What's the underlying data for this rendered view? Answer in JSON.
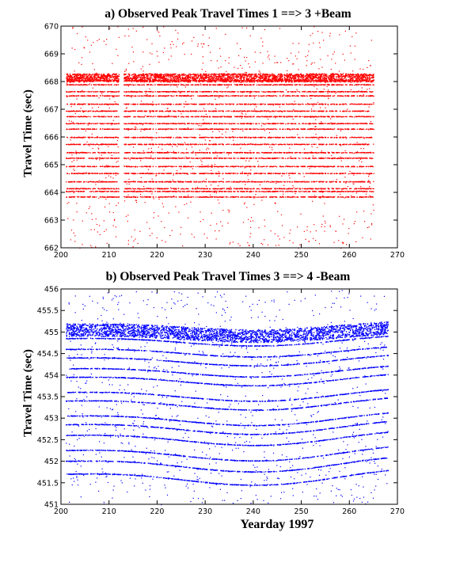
{
  "chart_data": [
    {
      "type": "scatter",
      "title": "a)  Observed Peak Travel Times 1 ==> 3 +Beam",
      "xlabel": "",
      "ylabel": "Travel Time (sec)",
      "xlim": [
        200,
        270
      ],
      "ylim": [
        662,
        670
      ],
      "xticks": [
        "200",
        "210",
        "220",
        "230",
        "240",
        "250",
        "260",
        "270"
      ],
      "yticks": [
        "662",
        "663",
        "664",
        "665",
        "666",
        "667",
        "668",
        "669",
        "670"
      ],
      "grid": false,
      "color": "#ff0000",
      "x_range_of_data": [
        201,
        265
      ],
      "gap": [
        212,
        213
      ],
      "arrival_bands": [
        668.05,
        667.9,
        667.65,
        667.5,
        667.2,
        666.95,
        666.75,
        666.5,
        666.3,
        666.0,
        665.75,
        665.45,
        665.25,
        664.95,
        664.7,
        664.4,
        664.15,
        664.05,
        663.85
      ],
      "dense_band": [
        668.0,
        668.3
      ]
    },
    {
      "type": "scatter",
      "title": "b)  Observed Peak Travel Times 3 ==> 4 -Beam",
      "xlabel": "Yearday 1997",
      "ylabel": "Travel Time (sec)",
      "xlim": [
        200,
        270
      ],
      "ylim": [
        451,
        456
      ],
      "xticks": [
        "200",
        "210",
        "220",
        "230",
        "240",
        "250",
        "260",
        "270"
      ],
      "yticks": [
        "451",
        "451.5",
        "452",
        "452.5",
        "453",
        "453.5",
        "454",
        "454.5",
        "455",
        "455.5",
        "456"
      ],
      "grid": false,
      "color": "#0000ff",
      "x_range_of_data": [
        201,
        268
      ],
      "arrival_bands": [
        454.85,
        454.6,
        454.4,
        454.15,
        453.95,
        453.6,
        453.4,
        453.05,
        452.85,
        452.6,
        452.25,
        452.0,
        451.7
      ],
      "dense_band": [
        454.9,
        455.2
      ]
    }
  ]
}
